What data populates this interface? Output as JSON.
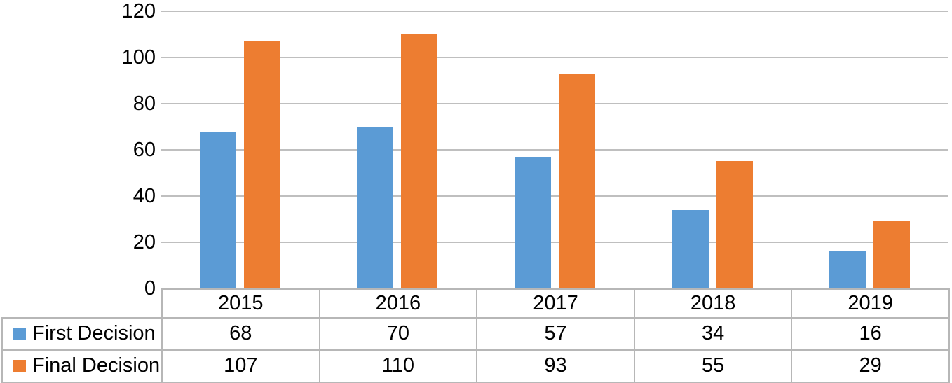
{
  "chart_data": {
    "type": "bar",
    "title": "",
    "xlabel": "",
    "ylabel": "",
    "categories": [
      "2015",
      "2016",
      "2017",
      "2018",
      "2019"
    ],
    "series": [
      {
        "name": "First Decision",
        "color": "#5B9BD5",
        "values": [
          68,
          70,
          57,
          34,
          16
        ]
      },
      {
        "name": "Final Decision",
        "color": "#ED7D31",
        "values": [
          107,
          110,
          93,
          55,
          29
        ]
      }
    ],
    "ylim": [
      0,
      120
    ],
    "ytick_step": 20,
    "ytick_labels": [
      "0",
      "20",
      "40",
      "60",
      "80",
      "100",
      "120"
    ],
    "grid": true,
    "legend_position": "data-table-left"
  },
  "colors": {
    "first_decision": "#5B9BD5",
    "final_decision": "#ED7D31",
    "gridline": "#BFBFBF",
    "table_border": "#B7B7B7",
    "text": "#000000",
    "background": "#FFFFFF"
  }
}
